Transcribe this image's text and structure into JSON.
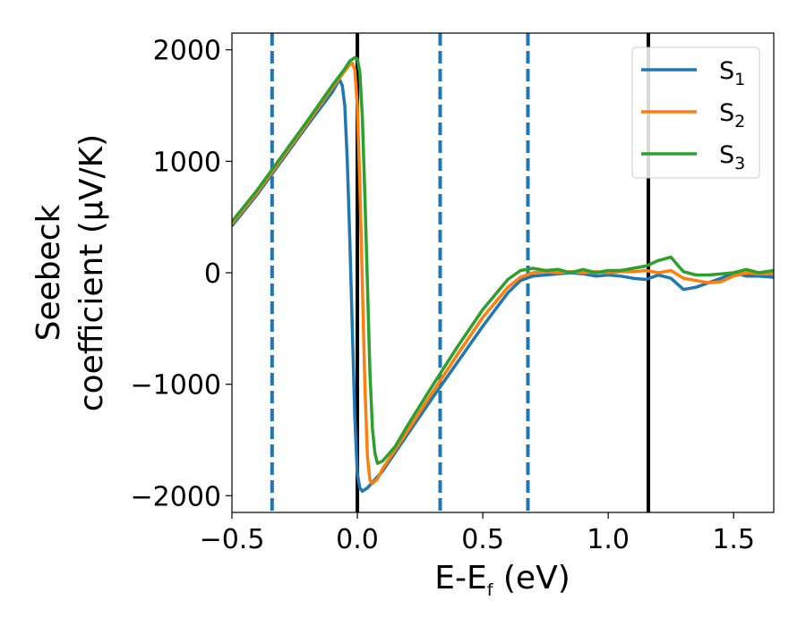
{
  "chart_data": {
    "type": "line",
    "xlabel": {
      "main": "E-E",
      "sub": "f",
      "unit": " (eV)"
    },
    "ylabel": {
      "line1": "Seebeck",
      "line2": "coefficient  (μV/K)"
    },
    "xlim": [
      -0.5,
      1.66
    ],
    "ylim": [
      -2150,
      2150
    ],
    "xticks": [
      -0.5,
      0.0,
      0.5,
      1.0,
      1.5
    ],
    "xtick_labels": [
      "−0.5",
      "0.0",
      "0.5",
      "1.0",
      "1.5"
    ],
    "yticks": [
      -2000,
      -1000,
      0,
      1000,
      2000
    ],
    "ytick_labels": [
      "−2000",
      "−1000",
      "0",
      "1000",
      "2000"
    ],
    "grid": false,
    "legend_placement": "top-right",
    "vlines": [
      {
        "x": -0.34,
        "style": "dashed",
        "color": "#1f77b4"
      },
      {
        "x": 0.0,
        "style": "solid",
        "color": "#000000"
      },
      {
        "x": 0.33,
        "style": "dashed",
        "color": "#1f77b4"
      },
      {
        "x": 0.68,
        "style": "dashed",
        "color": "#1f77b4"
      },
      {
        "x": 1.16,
        "style": "solid",
        "color": "#000000"
      }
    ],
    "series": [
      {
        "name": "S",
        "sub": "1",
        "color": "#1f77b4",
        "points": [
          [
            -0.5,
            420
          ],
          [
            -0.4,
            700
          ],
          [
            -0.3,
            1010
          ],
          [
            -0.2,
            1320
          ],
          [
            -0.1,
            1620
          ],
          [
            -0.08,
            1700
          ],
          [
            -0.07,
            1730
          ],
          [
            -0.06,
            1680
          ],
          [
            -0.05,
            1500
          ],
          [
            -0.04,
            1000
          ],
          [
            -0.03,
            300
          ],
          [
            -0.02,
            -500
          ],
          [
            -0.01,
            -1300
          ],
          [
            0.0,
            -1800
          ],
          [
            0.01,
            -1930
          ],
          [
            0.02,
            -1960
          ],
          [
            0.04,
            -1930
          ],
          [
            0.06,
            -1880
          ],
          [
            0.1,
            -1780
          ],
          [
            0.2,
            -1450
          ],
          [
            0.3,
            -1120
          ],
          [
            0.4,
            -800
          ],
          [
            0.5,
            -480
          ],
          [
            0.6,
            -180
          ],
          [
            0.65,
            -70
          ],
          [
            0.7,
            -30
          ],
          [
            0.75,
            -20
          ],
          [
            0.8,
            -10
          ],
          [
            0.85,
            0
          ],
          [
            0.9,
            -10
          ],
          [
            0.95,
            -30
          ],
          [
            1.0,
            -20
          ],
          [
            1.05,
            -30
          ],
          [
            1.1,
            -50
          ],
          [
            1.15,
            -60
          ],
          [
            1.2,
            -20
          ],
          [
            1.25,
            -50
          ],
          [
            1.3,
            -150
          ],
          [
            1.35,
            -130
          ],
          [
            1.4,
            -90
          ],
          [
            1.45,
            -50
          ],
          [
            1.5,
            0
          ],
          [
            1.55,
            -30
          ],
          [
            1.6,
            -30
          ],
          [
            1.66,
            -40
          ]
        ]
      },
      {
        "name": "S",
        "sub": "2",
        "color": "#ff7f0e",
        "points": [
          [
            -0.5,
            440
          ],
          [
            -0.4,
            720
          ],
          [
            -0.3,
            1030
          ],
          [
            -0.2,
            1340
          ],
          [
            -0.1,
            1660
          ],
          [
            -0.05,
            1810
          ],
          [
            -0.03,
            1870
          ],
          [
            -0.02,
            1880
          ],
          [
            -0.01,
            1820
          ],
          [
            0.0,
            1500
          ],
          [
            0.01,
            800
          ],
          [
            0.02,
            -100
          ],
          [
            0.03,
            -1000
          ],
          [
            0.04,
            -1650
          ],
          [
            0.05,
            -1860
          ],
          [
            0.06,
            -1890
          ],
          [
            0.08,
            -1850
          ],
          [
            0.1,
            -1760
          ],
          [
            0.2,
            -1420
          ],
          [
            0.3,
            -1070
          ],
          [
            0.4,
            -730
          ],
          [
            0.5,
            -400
          ],
          [
            0.6,
            -130
          ],
          [
            0.65,
            -40
          ],
          [
            0.7,
            0
          ],
          [
            0.75,
            10
          ],
          [
            0.8,
            0
          ],
          [
            0.85,
            10
          ],
          [
            0.9,
            0
          ],
          [
            0.95,
            10
          ],
          [
            1.0,
            0
          ],
          [
            1.05,
            10
          ],
          [
            1.1,
            10
          ],
          [
            1.15,
            20
          ],
          [
            1.2,
            0
          ],
          [
            1.25,
            20
          ],
          [
            1.3,
            -50
          ],
          [
            1.35,
            -70
          ],
          [
            1.4,
            -90
          ],
          [
            1.45,
            -80
          ],
          [
            1.5,
            -30
          ],
          [
            1.55,
            0
          ],
          [
            1.6,
            -10
          ],
          [
            1.66,
            -10
          ]
        ]
      },
      {
        "name": "S",
        "sub": "3",
        "color": "#2ca02c",
        "points": [
          [
            -0.5,
            460
          ],
          [
            -0.4,
            740
          ],
          [
            -0.3,
            1050
          ],
          [
            -0.2,
            1360
          ],
          [
            -0.1,
            1680
          ],
          [
            -0.05,
            1830
          ],
          [
            -0.03,
            1900
          ],
          [
            -0.01,
            1930
          ],
          [
            0.0,
            1920
          ],
          [
            0.01,
            1800
          ],
          [
            0.02,
            1400
          ],
          [
            0.03,
            700
          ],
          [
            0.04,
            -100
          ],
          [
            0.05,
            -900
          ],
          [
            0.06,
            -1400
          ],
          [
            0.07,
            -1620
          ],
          [
            0.08,
            -1710
          ],
          [
            0.1,
            -1690
          ],
          [
            0.15,
            -1560
          ],
          [
            0.2,
            -1370
          ],
          [
            0.3,
            -1010
          ],
          [
            0.4,
            -660
          ],
          [
            0.5,
            -330
          ],
          [
            0.6,
            -60
          ],
          [
            0.65,
            20
          ],
          [
            0.7,
            40
          ],
          [
            0.75,
            20
          ],
          [
            0.8,
            30
          ],
          [
            0.85,
            0
          ],
          [
            0.9,
            30
          ],
          [
            0.95,
            0
          ],
          [
            1.0,
            20
          ],
          [
            1.05,
            20
          ],
          [
            1.1,
            40
          ],
          [
            1.15,
            60
          ],
          [
            1.2,
            110
          ],
          [
            1.25,
            140
          ],
          [
            1.28,
            60
          ],
          [
            1.3,
            10
          ],
          [
            1.35,
            -20
          ],
          [
            1.4,
            -20
          ],
          [
            1.45,
            -10
          ],
          [
            1.5,
            0
          ],
          [
            1.55,
            30
          ],
          [
            1.6,
            0
          ],
          [
            1.66,
            20
          ]
        ]
      }
    ]
  }
}
